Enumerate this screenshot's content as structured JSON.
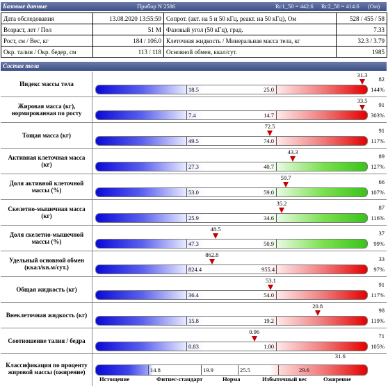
{
  "page": {
    "title_partial": "..."
  },
  "header_basic": {
    "title": "Базовые данные",
    "device": "Прибор N 2586",
    "rc1": "Rc1_50 = 442.6",
    "rc2": "Rc2_50 = 414.6",
    "unit": "(Ом)"
  },
  "basic": [
    {
      "l1": "Дата обследования",
      "v1": "13.08.2020 13:55:59",
      "l2": "Сопрот. (акт. на 5 и 50 кГц, реакт. на 50 кГц), Ом",
      "v2": "528 / 455 / 58"
    },
    {
      "l1": "Возраст, лет / Пол",
      "v1": "51 М",
      "l2": "Фазовый угол (50 кГц), град.",
      "v2": "7.33"
    },
    {
      "l1": "Рост, см / Вес, кг",
      "v1": "184 / 106.0",
      "l2": "Клеточная жидкость / Минеральная масса тела, кг",
      "v2": "32.3 / 3.79"
    },
    {
      "l1": "Окр. талии / Окр. бедер, см",
      "v1": "113 / 118",
      "l2": "Основной обмен, ккал/сут.",
      "v2": "1985"
    }
  ],
  "header_comp": {
    "title": "Состав тела"
  },
  "rows": [
    {
      "label": "Индекс массы тела",
      "lo": "18.5",
      "hi": "25.0",
      "value": "31.3",
      "value_num": 31.3,
      "lo_num": 18.5,
      "hi_num": 25.0,
      "count": "82",
      "percent": "144%",
      "color": "red"
    },
    {
      "label": "Жировая масса (кг), нормированная по росту",
      "lo": "7.4",
      "hi": "14.7",
      "value": "33.5",
      "value_num": 33.5,
      "lo_num": 7.4,
      "hi_num": 14.7,
      "count": "91",
      "percent": "303%",
      "color": "red"
    },
    {
      "label": "Тощая масса (кг)",
      "lo": "49.5",
      "hi": "74.0",
      "value": "72.5",
      "value_num": 72.5,
      "lo_num": 49.5,
      "hi_num": 74.0,
      "count": "91",
      "percent": "117%",
      "color": "red"
    },
    {
      "label": "Активная клеточная масса (кг)",
      "lo": "27.3",
      "hi": "40.7",
      "value": "43.3",
      "value_num": 43.3,
      "lo_num": 27.3,
      "hi_num": 40.7,
      "count": "89",
      "percent": "127%",
      "color": "green"
    },
    {
      "label": "Доля активной клеточной массы (%)",
      "lo": "53.0",
      "hi": "59.0",
      "value": "59.7",
      "value_num": 59.7,
      "lo_num": 53.0,
      "hi_num": 59.0,
      "count": "66",
      "percent": "107%",
      "color": "green"
    },
    {
      "label": "Скелетно-мышечная масса (кг)",
      "lo": "25.9",
      "hi": "34.6",
      "value": "35.2",
      "value_num": 35.2,
      "lo_num": 25.9,
      "hi_num": 34.6,
      "count": "87",
      "percent": "116%",
      "color": "green"
    },
    {
      "label": "Доля скелетно-мышечной массы (%)",
      "lo": "47.3",
      "hi": "50.9",
      "value": "48.5",
      "value_num": 48.5,
      "lo_num": 47.3,
      "hi_num": 50.9,
      "count": "37",
      "percent": "99%",
      "color": "green"
    },
    {
      "label": "Удельный основной обмен (ккал/кв.м/сут.)",
      "lo": "824.4",
      "hi": "955.4",
      "value": "862.8",
      "value_num": 862.8,
      "lo_num": 824.4,
      "hi_num": 955.4,
      "count": "33",
      "percent": "97%",
      "color": "red"
    },
    {
      "label": "Общая жидкость (кг)",
      "lo": "36.4",
      "hi": "54.0",
      "value": "53.1",
      "value_num": 53.1,
      "lo_num": 36.4,
      "hi_num": 54.0,
      "count": "91",
      "percent": "117%",
      "color": "red"
    },
    {
      "label": "Внеклеточная жидкость (кг)",
      "lo": "15.8",
      "hi": "19.2",
      "value": "20.8",
      "value_num": 20.8,
      "lo_num": 15.8,
      "hi_num": 19.2,
      "count": "98",
      "percent": "119%",
      "color": "red"
    },
    {
      "label": "Соотношение талия / бедра",
      "lo": "0.83",
      "hi": "1.00",
      "value": "0.96",
      "value_num": 0.96,
      "lo_num": 0.83,
      "hi_num": 1.0,
      "count": "71",
      "percent": "105%",
      "color": "red"
    }
  ],
  "classification": {
    "label": "Классификация по проценту жировой массы (ожирение)",
    "thresholds": [
      "14.8",
      "19.9",
      "25.5",
      "29.6"
    ],
    "threshold_nums": [
      14.8,
      19.9,
      25.5,
      29.6
    ],
    "value": "31.6",
    "value_num": 31.6,
    "categories": [
      "Истощение",
      "Фитнес-стандарт",
      "Норма",
      "Избыточный вес",
      "Ожирение"
    ]
  }
}
